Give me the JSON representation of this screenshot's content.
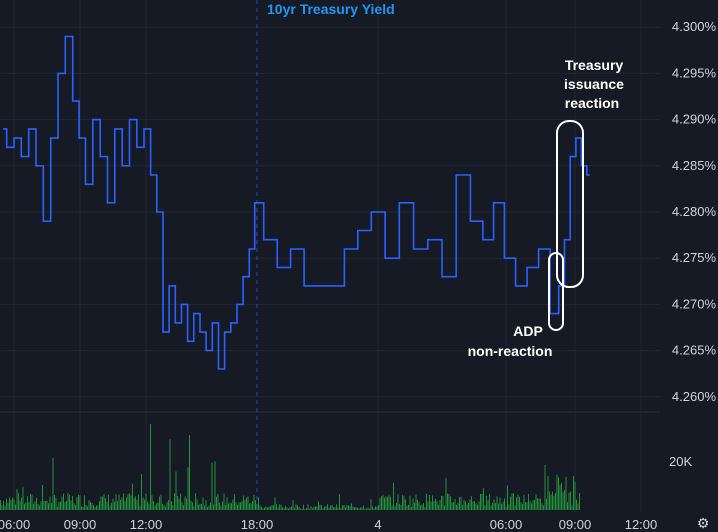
{
  "chart_data": {
    "type": "line",
    "title": "10yr Treasury Yield",
    "x_tick_labels": [
      "06:00",
      "09:00",
      "12:00",
      "18:00",
      "4",
      "06:00",
      "09:00",
      "12:00"
    ],
    "y_tick_labels": [
      "4.260%",
      "4.265%",
      "4.270%",
      "4.275%",
      "4.280%",
      "4.285%",
      "4.290%",
      "4.295%",
      "4.300%"
    ],
    "ylim": [
      4.259,
      4.301
    ],
    "volume_label": "20K",
    "annotations": [
      {
        "lines": [
          "Treasury",
          "issuance",
          "reaction"
        ]
      },
      {
        "lines": [
          "ADP",
          "non-reaction"
        ]
      }
    ],
    "series": [
      {
        "color": "#2962ff",
        "x": [
          "05:30",
          "05:50",
          "06:10",
          "06:30",
          "06:50",
          "07:10",
          "07:30",
          "07:50",
          "08:10",
          "08:30",
          "08:50",
          "09:05",
          "09:25",
          "09:45",
          "10:05",
          "10:25",
          "10:45",
          "11:05",
          "11:25",
          "11:45",
          "12:05",
          "12:25",
          "12:45",
          "13:05",
          "13:25",
          "13:45",
          "14:05",
          "14:25",
          "14:45",
          "15:05",
          "15:25",
          "15:45",
          "16:05",
          "16:25",
          "16:45",
          "17:05",
          "17:25",
          "17:45",
          "18:00",
          "18:40",
          "19:20",
          "20:00",
          "20:40",
          "21:20",
          "22:00",
          "22:40",
          "23:20",
          "00:00",
          "00:40",
          "01:20",
          "02:00",
          "02:40",
          "03:20",
          "04:00",
          "04:40",
          "05:10",
          "05:40",
          "06:10",
          "06:40",
          "07:10",
          "07:40",
          "08:10",
          "08:25",
          "08:40",
          "08:55",
          "09:10",
          "09:25",
          "09:40"
        ],
        "y": [
          4.289,
          4.287,
          4.288,
          4.286,
          4.289,
          4.285,
          4.279,
          4.288,
          4.295,
          4.299,
          4.292,
          4.288,
          4.283,
          4.29,
          4.286,
          4.281,
          4.289,
          4.285,
          4.29,
          4.287,
          4.289,
          4.284,
          4.28,
          4.267,
          4.272,
          4.268,
          4.27,
          4.266,
          4.269,
          4.267,
          4.265,
          4.268,
          4.263,
          4.267,
          4.268,
          4.27,
          4.273,
          4.276,
          4.281,
          4.277,
          4.274,
          4.276,
          4.272,
          4.272,
          4.272,
          4.276,
          4.278,
          4.28,
          4.275,
          4.281,
          4.276,
          4.277,
          4.273,
          4.284,
          4.279,
          4.277,
          4.281,
          4.275,
          4.272,
          4.274,
          4.276,
          4.269,
          4.272,
          4.277,
          4.286,
          4.288,
          4.285,
          4.284
        ]
      }
    ],
    "grid": true
  }
}
